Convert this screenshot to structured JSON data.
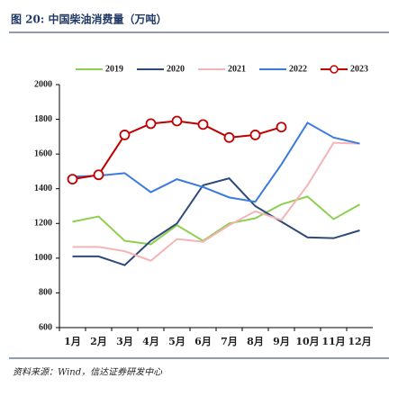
{
  "chart_data": {
    "type": "line",
    "title": "图 20:  中国柴油消费量（万吨）",
    "source": "资料来源：Wind，信达证券研发中心",
    "categories": [
      "1月",
      "2月",
      "3月",
      "4月",
      "5月",
      "6月",
      "7月",
      "8月",
      "9月",
      "10月",
      "11月",
      "12月"
    ],
    "series": [
      {
        "name": "2019",
        "color": "#8fcf4f",
        "values": [
          1210,
          1240,
          1100,
          1080,
          1190,
          1100,
          1200,
          1230,
          1310,
          1355,
          1225,
          1310
        ]
      },
      {
        "name": "2020",
        "color": "#2e4a7a",
        "values": [
          1010,
          1010,
          960,
          1100,
          1200,
          1420,
          1460,
          1300,
          1210,
          1120,
          1115,
          1160
        ]
      },
      {
        "name": "2021",
        "color": "#f4b3b7",
        "values": [
          1065,
          1065,
          1040,
          985,
          1110,
          1095,
          1190,
          1270,
          1220,
          1420,
          1665,
          1660
        ]
      },
      {
        "name": "2022",
        "color": "#3b7be0",
        "values": [
          1470,
          1475,
          1490,
          1380,
          1455,
          1410,
          1350,
          1325,
          1540,
          1780,
          1695,
          1660
        ]
      },
      {
        "name": "2023",
        "color": "#c00000",
        "marker": true,
        "values": [
          1455,
          1480,
          1710,
          1775,
          1790,
          1770,
          1695,
          1710,
          1755,
          null,
          null,
          null
        ]
      }
    ],
    "ylim": [
      600,
      2000
    ],
    "yticks": [
      600,
      800,
      1000,
      1200,
      1400,
      1600,
      1800,
      2000
    ]
  }
}
